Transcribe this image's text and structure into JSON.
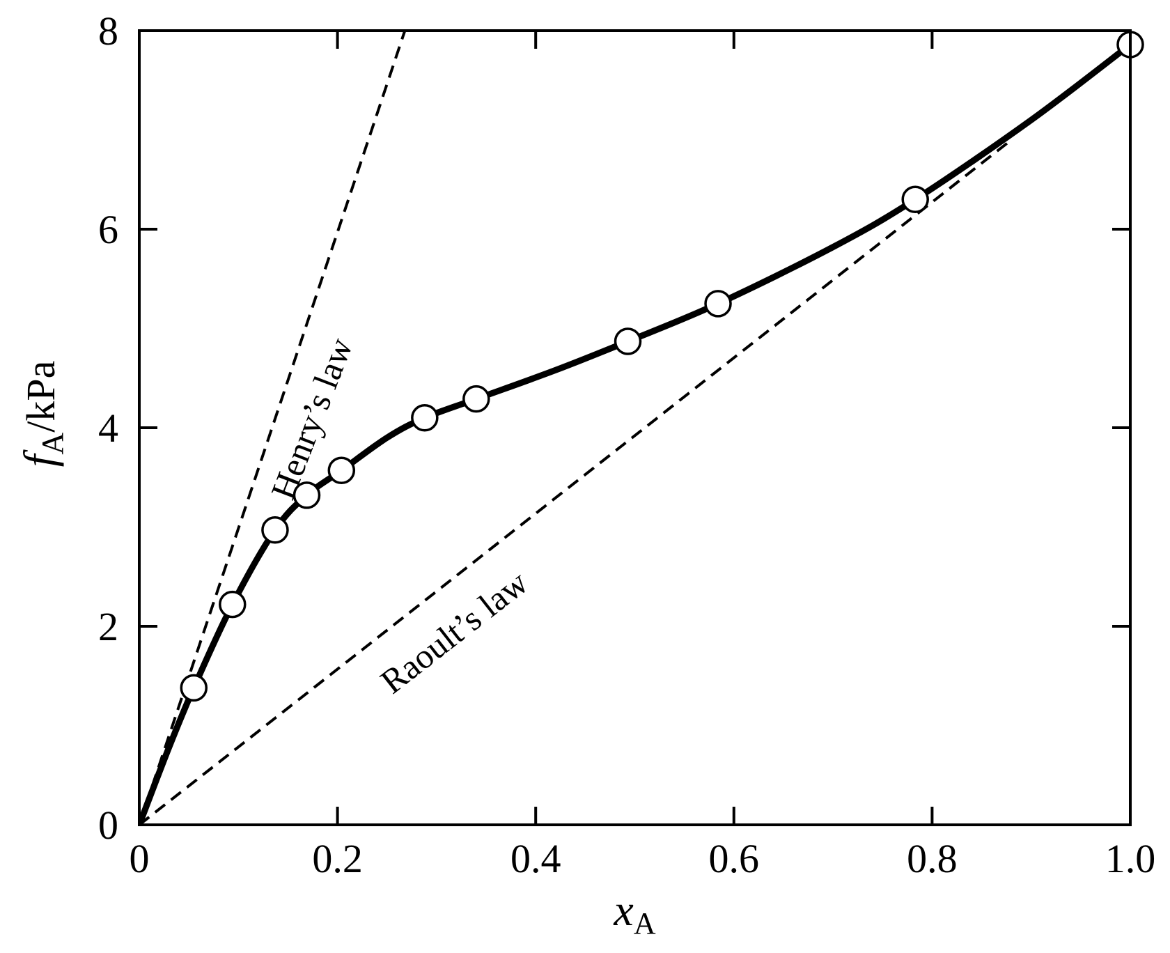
{
  "chart_data": {
    "type": "line",
    "xlabel": {
      "main": "x",
      "sub": "A"
    },
    "ylabel": {
      "main": "f",
      "sub": "A",
      "unit": "/kPa"
    },
    "xlim": [
      0,
      1.0
    ],
    "ylim": [
      0,
      8
    ],
    "x_ticks": [
      0,
      0.2,
      0.4,
      0.6,
      0.8,
      1.0
    ],
    "x_tick_labels": [
      "0",
      "0.2",
      "0.4",
      "0.6",
      "0.8",
      "1.0"
    ],
    "y_ticks": [
      0,
      2,
      4,
      6,
      8
    ],
    "y_tick_labels": [
      "0",
      "2",
      "4",
      "6",
      "8"
    ],
    "grid": false,
    "series": [
      {
        "style": "markers",
        "x": [
          0.055,
          0.094,
          0.137,
          0.169,
          0.204,
          0.288,
          0.34,
          0.493,
          0.584,
          0.783,
          1.0
        ],
        "y": [
          1.38,
          2.22,
          2.97,
          3.32,
          3.57,
          4.1,
          4.29,
          4.87,
          5.25,
          6.3,
          7.86
        ]
      },
      {
        "style": "solid",
        "x": [
          0,
          0.03,
          0.055,
          0.094,
          0.137,
          0.169,
          0.204,
          0.25,
          0.288,
          0.34,
          0.42,
          0.493,
          0.584,
          0.7,
          0.783,
          0.9,
          1.0
        ],
        "y": [
          0,
          0.78,
          1.38,
          2.22,
          2.97,
          3.32,
          3.57,
          3.9,
          4.1,
          4.29,
          4.58,
          4.87,
          5.25,
          5.82,
          6.3,
          7.1,
          7.86
        ]
      },
      {
        "style": "dashed",
        "x": [
          0,
          0.268
        ],
        "y": [
          0,
          8.0
        ]
      },
      {
        "style": "dashed",
        "x": [
          0,
          0.88
        ],
        "y": [
          0,
          6.9
        ]
      }
    ],
    "annotations": [
      {
        "text": "Henry’s law",
        "x": 0.185,
        "y": 4.05,
        "angle": -69
      },
      {
        "text": "Raoult’s law",
        "x": 0.325,
        "y": 1.85,
        "angle": -38
      }
    ]
  }
}
